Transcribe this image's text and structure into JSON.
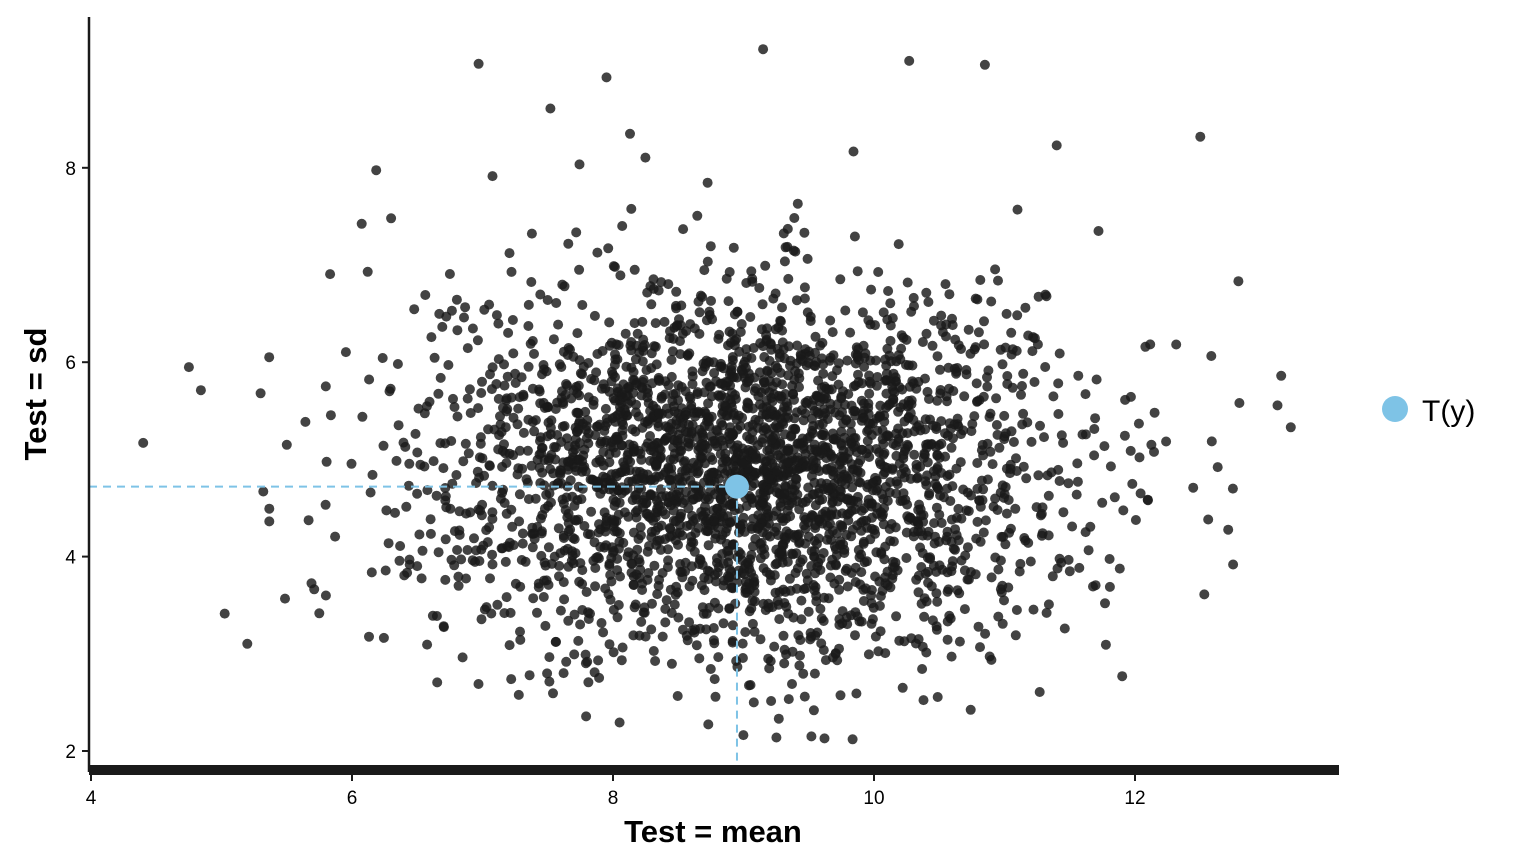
{
  "chart_data": {
    "type": "scatter",
    "title": "",
    "xlabel": "Test = mean",
    "ylabel": "Test = sd",
    "xlim": [
      4,
      13.6
    ],
    "ylim": [
      1.8,
      9.4
    ],
    "x_ticks": [
      "4",
      "6",
      "8",
      "10",
      "12"
    ],
    "y_ticks": [
      "2",
      "4",
      "6",
      "8"
    ],
    "grid": false,
    "legend": {
      "position": "right",
      "label": "T(y)"
    },
    "observed": {
      "name": "T(y)",
      "x": 8.95,
      "y": 4.72,
      "color": "#7ec3e6"
    },
    "replicates": {
      "point_color": "#1a1a1a",
      "center": {
        "x": 9.0,
        "y": 4.9
      },
      "sd": {
        "x": 1.2,
        "y": 0.95
      },
      "count": 3000,
      "x_range": [
        4.4,
        13.2
      ],
      "y_range": [
        2.1,
        9.2
      ],
      "outliers": [
        {
          "x": 4.4,
          "y": 5.17
        },
        {
          "x": 4.75,
          "y": 5.95
        },
        {
          "x": 5.3,
          "y": 5.68
        },
        {
          "x": 5.32,
          "y": 4.67
        },
        {
          "x": 5.5,
          "y": 5.15
        },
        {
          "x": 5.8,
          "y": 3.6
        },
        {
          "x": 6.97,
          "y": 9.07
        },
        {
          "x": 7.95,
          "y": 8.93
        },
        {
          "x": 9.15,
          "y": 9.22
        },
        {
          "x": 10.27,
          "y": 9.1
        },
        {
          "x": 10.85,
          "y": 9.06
        },
        {
          "x": 7.52,
          "y": 8.61
        },
        {
          "x": 8.13,
          "y": 8.35
        },
        {
          "x": 11.4,
          "y": 8.23
        },
        {
          "x": 12.5,
          "y": 8.32
        },
        {
          "x": 13.12,
          "y": 5.86
        },
        {
          "x": 12.8,
          "y": 5.58
        },
        {
          "x": 12.75,
          "y": 4.7
        },
        {
          "x": 11.77,
          "y": 3.52
        },
        {
          "x": 9.52,
          "y": 2.15
        },
        {
          "x": 9.47,
          "y": 2.56
        },
        {
          "x": 10.22,
          "y": 2.65
        },
        {
          "x": 7.22,
          "y": 2.74
        },
        {
          "x": 6.3,
          "y": 7.48
        },
        {
          "x": 6.12,
          "y": 6.93
        },
        {
          "x": 12.15,
          "y": 5.48
        },
        {
          "x": 12.1,
          "y": 4.58
        },
        {
          "x": 11.72,
          "y": 7.35
        },
        {
          "x": 11.1,
          "y": 7.57
        },
        {
          "x": 10.95,
          "y": 6.84
        }
      ]
    }
  }
}
